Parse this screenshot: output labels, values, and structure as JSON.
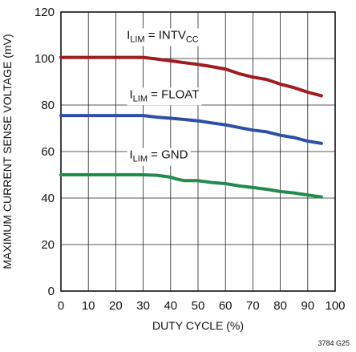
{
  "chart_data": {
    "type": "line",
    "xlabel": "DUTY CYCLE (%)",
    "ylabel": "MAXIMUM CURRENT SENSE VOLTAGE (mV)",
    "xlim": [
      0,
      100
    ],
    "ylim": [
      0,
      120
    ],
    "xticks": [
      "0",
      "10",
      "20",
      "30",
      "40",
      "50",
      "60",
      "70",
      "80",
      "90",
      "100"
    ],
    "yticks": [
      "0",
      "20",
      "40",
      "60",
      "80",
      "100",
      "120"
    ],
    "grid": true,
    "figure_id": "3784 G25",
    "series": [
      {
        "name": "I_LIM = INTV_CC",
        "label_main": "I",
        "label_sub": "LIM",
        "label_mid": " = INTV",
        "label_sub2": "CC",
        "color": "#9e1b20",
        "x": [
          0,
          10,
          20,
          30,
          35,
          40,
          45,
          50,
          55,
          60,
          65,
          70,
          75,
          80,
          85,
          90,
          95
        ],
        "y": [
          100.5,
          100.5,
          100.5,
          100.5,
          99.8,
          99,
          98.2,
          97.5,
          96.5,
          95.5,
          93.5,
          92,
          91,
          89,
          87.5,
          85.5,
          84
        ]
      },
      {
        "name": "I_LIM = FLOAT",
        "label_main": "I",
        "label_sub": "LIM",
        "label_mid": " = FLOAT",
        "label_sub2": "",
        "color": "#2e4fa3",
        "x": [
          0,
          10,
          20,
          30,
          35,
          40,
          45,
          50,
          55,
          60,
          65,
          70,
          75,
          80,
          85,
          90,
          95
        ],
        "y": [
          75.5,
          75.5,
          75.5,
          75.5,
          74.8,
          74.3,
          73.8,
          73.2,
          72.3,
          71.5,
          70.3,
          69.2,
          68.5,
          67,
          66,
          64.5,
          63.5
        ]
      },
      {
        "name": "I_LIM = GND",
        "label_main": "I",
        "label_sub": "LIM",
        "label_mid": " = GND",
        "label_sub2": "",
        "color": "#238a4e",
        "x": [
          0,
          10,
          20,
          30,
          35,
          40,
          42,
          45,
          50,
          55,
          60,
          65,
          70,
          75,
          80,
          85,
          90,
          95
        ],
        "y": [
          50,
          50,
          50,
          50,
          49.8,
          49,
          48.2,
          47.5,
          47.5,
          46.7,
          46.2,
          45.2,
          44.5,
          43.8,
          42.8,
          42.2,
          41.3,
          40.5
        ]
      }
    ]
  }
}
